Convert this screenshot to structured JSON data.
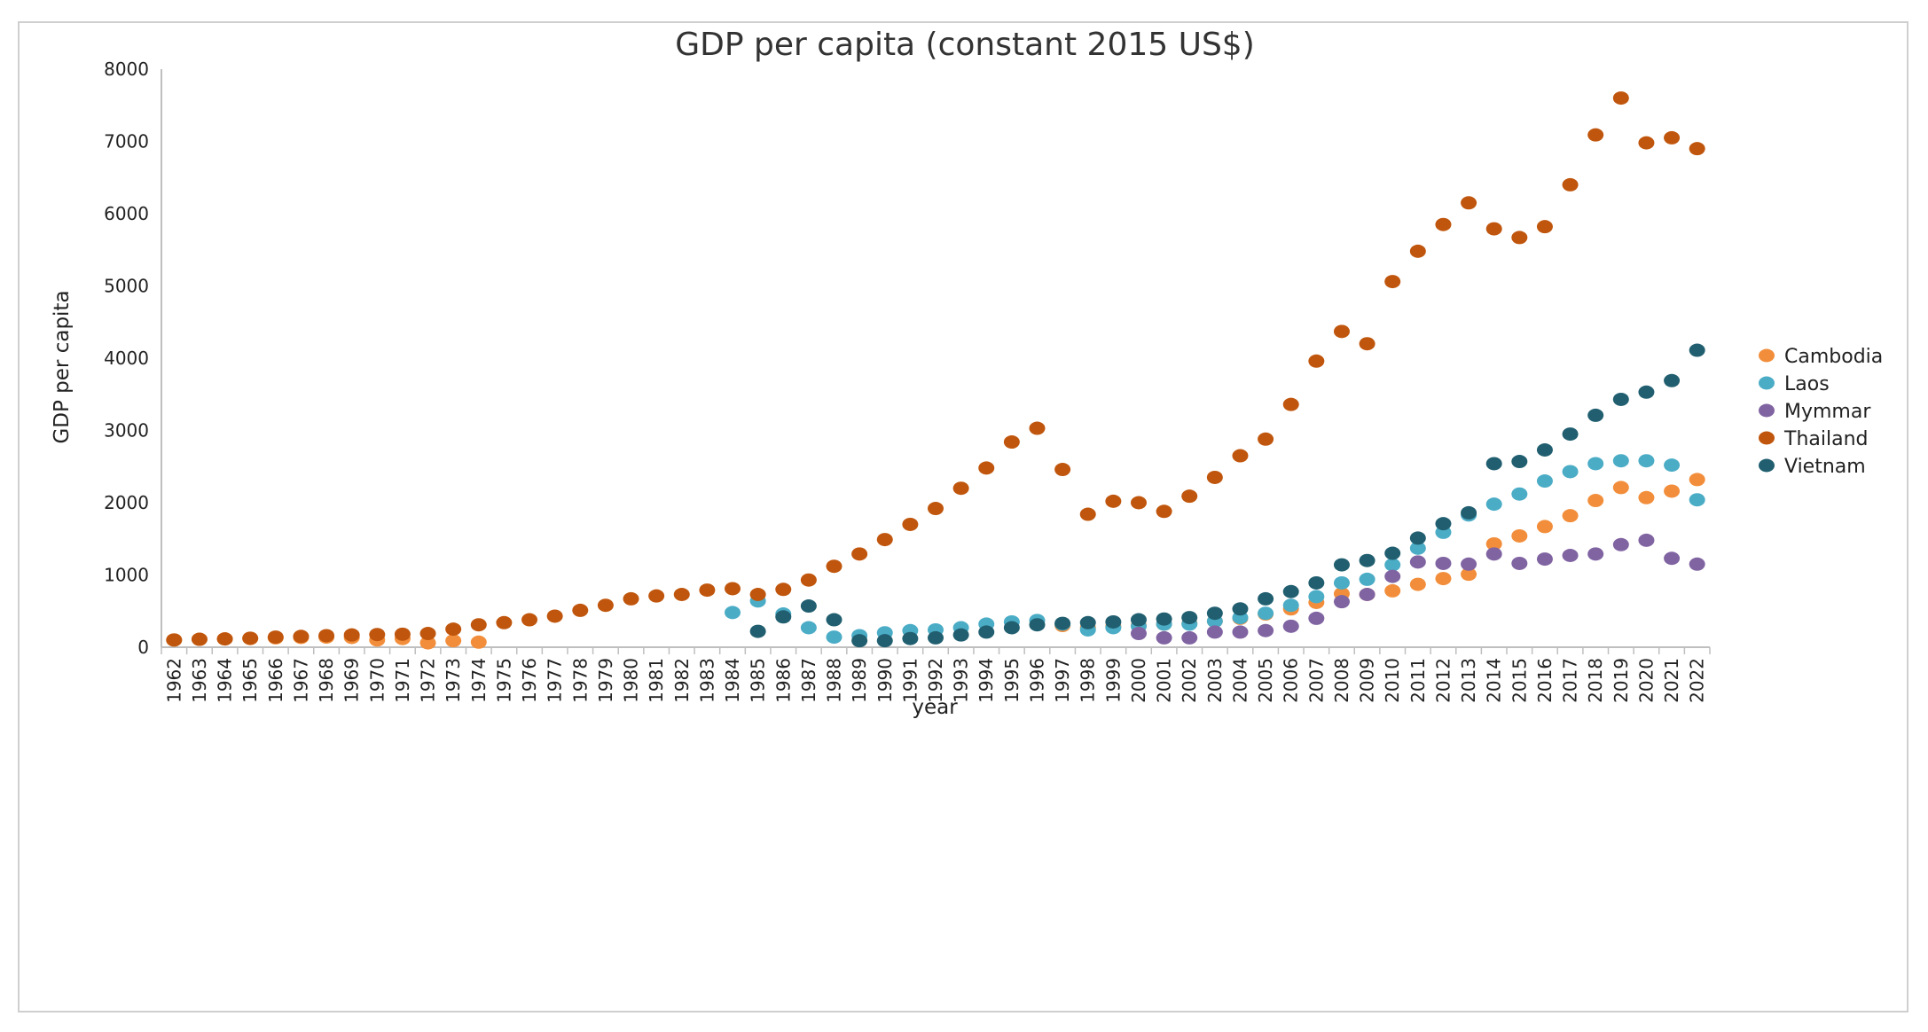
{
  "chart_data": {
    "type": "scatter",
    "title": "GDP per capita (constant 2015 US$)",
    "xlabel": "year",
    "ylabel": "GDP per capita",
    "ylim": [
      0,
      8000
    ],
    "yticks": [
      "0",
      "1000",
      "2000",
      "3000",
      "4000",
      "5000",
      "6000",
      "7000",
      "8000"
    ],
    "x": [
      "1962",
      "1963",
      "1964",
      "1965",
      "1966",
      "1967",
      "1968",
      "1969",
      "1970",
      "1971",
      "1972",
      "1973",
      "1974",
      "1975",
      "1976",
      "1977",
      "1978",
      "1979",
      "1980",
      "1981",
      "1982",
      "1983",
      "1984",
      "1985",
      "1986",
      "1987",
      "1988",
      "1989",
      "1990",
      "1991",
      "1992",
      "1993",
      "1994",
      "1995",
      "1996",
      "1997",
      "1998",
      "1999",
      "2000",
      "2001",
      "2002",
      "2003",
      "2004",
      "2005",
      "2006",
      "2007",
      "2008",
      "2009",
      "2010",
      "2011",
      "2012",
      "2013",
      "2014",
      "2015",
      "2016",
      "2017",
      "2018",
      "2019",
      "2020",
      "2021",
      "2022"
    ],
    "grid": false,
    "legend_position": "right",
    "series": [
      {
        "name": "Cambodia",
        "color": "#f28e3b",
        "values": [
          100,
          110,
          115,
          120,
          130,
          135,
          140,
          135,
          100,
          120,
          60,
          90,
          70,
          null,
          null,
          null,
          null,
          null,
          null,
          null,
          null,
          null,
          null,
          null,
          null,
          null,
          null,
          null,
          null,
          null,
          null,
          null,
          null,
          null,
          null,
          300,
          270,
          290,
          300,
          320,
          330,
          360,
          400,
          460,
          530,
          620,
          740,
          730,
          780,
          870,
          950,
          1010,
          1430,
          1540,
          1670,
          1820,
          2030,
          2210,
          2070,
          2160,
          2320
        ]
      },
      {
        "name": "Laos",
        "color": "#4bacc6",
        "values": [
          null,
          null,
          null,
          null,
          null,
          null,
          null,
          null,
          null,
          null,
          null,
          null,
          null,
          null,
          null,
          null,
          null,
          null,
          null,
          null,
          null,
          null,
          480,
          640,
          460,
          270,
          140,
          160,
          200,
          230,
          240,
          270,
          320,
          350,
          370,
          320,
          240,
          270,
          290,
          320,
          320,
          360,
          410,
          470,
          580,
          700,
          890,
          940,
          1140,
          1370,
          1590,
          1830,
          1980,
          2120,
          2300,
          2430,
          2540,
          2580,
          2580,
          2520,
          2040
        ]
      },
      {
        "name": "Mymmar",
        "color": "#8064a2",
        "values": [
          null,
          null,
          null,
          null,
          null,
          null,
          null,
          null,
          null,
          null,
          null,
          null,
          null,
          null,
          null,
          null,
          null,
          null,
          null,
          null,
          null,
          null,
          null,
          null,
          null,
          null,
          null,
          null,
          null,
          null,
          null,
          null,
          null,
          null,
          null,
          null,
          null,
          null,
          190,
          130,
          130,
          210,
          210,
          230,
          290,
          400,
          630,
          730,
          980,
          1180,
          1160,
          1150,
          1290,
          1160,
          1220,
          1270,
          1290,
          1420,
          1480,
          1230,
          1150
        ]
      },
      {
        "name": "Thailand",
        "color": "#c0560d",
        "values": [
          100,
          110,
          115,
          125,
          140,
          150,
          160,
          170,
          175,
          180,
          190,
          250,
          310,
          340,
          380,
          430,
          510,
          580,
          670,
          710,
          730,
          790,
          810,
          730,
          800,
          930,
          1120,
          1290,
          1490,
          1700,
          1920,
          2200,
          2480,
          2840,
          3030,
          2460,
          1840,
          2020,
          2000,
          1880,
          2090,
          2350,
          2650,
          2880,
          3360,
          3960,
          4370,
          4200,
          5060,
          5480,
          5850,
          6150,
          5790,
          5670,
          5820,
          6400,
          7090,
          7600,
          6980,
          7050,
          6900
        ]
      },
      {
        "name": "Vietnam",
        "color": "#215f70",
        "values": [
          null,
          null,
          null,
          null,
          null,
          null,
          null,
          null,
          null,
          null,
          null,
          null,
          null,
          null,
          null,
          null,
          null,
          null,
          null,
          null,
          null,
          null,
          null,
          220,
          420,
          570,
          380,
          90,
          90,
          120,
          130,
          170,
          210,
          270,
          310,
          330,
          340,
          350,
          380,
          390,
          410,
          470,
          530,
          670,
          770,
          890,
          1140,
          1200,
          1300,
          1510,
          1710,
          1860,
          2540,
          2570,
          2730,
          2950,
          3210,
          3430,
          3530,
          3690,
          4110
        ]
      }
    ]
  }
}
